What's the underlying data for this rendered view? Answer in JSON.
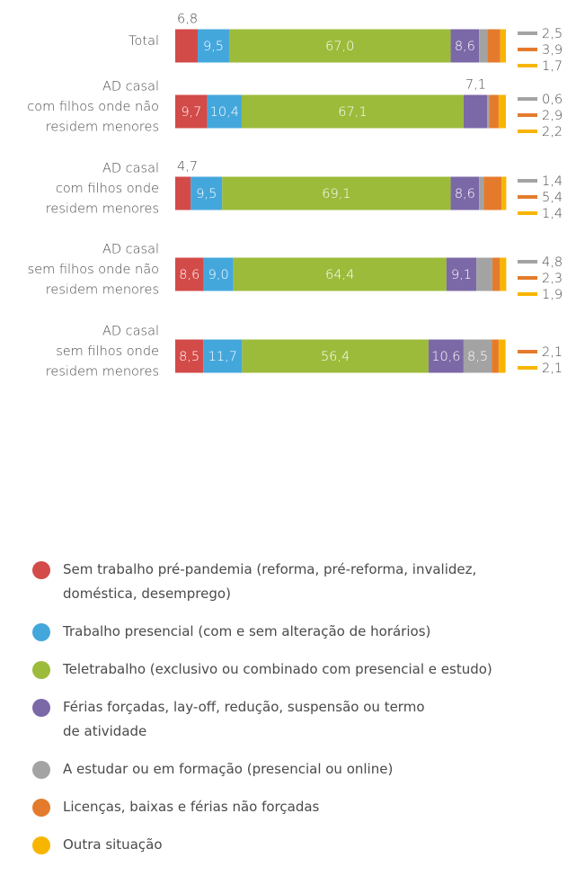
{
  "chart_data": {
    "type": "stacked_bar_horizontal",
    "categories": [
      [
        "Total"
      ],
      [
        "AD casal",
        "com filhos onde não",
        "residem menores"
      ],
      [
        "AD casal",
        "com filhos onde",
        "residem menores"
      ],
      [
        "AD casal",
        "sem filhos onde não",
        "residem menores"
      ],
      [
        "AD casal",
        "sem filhos onde",
        "residem menores"
      ]
    ],
    "xlim": [
      0,
      100
    ],
    "legend": "bottom",
    "series": [
      {
        "name": "Sem trabalho pré-pandemia (reforma, pré-reforma, invalidez, doméstica, desemprego)",
        "color": "#d24b49",
        "values": [
          6.8,
          9.7,
          4.7,
          8.6,
          8.5
        ],
        "value_labels": [
          "6,8",
          "9,7",
          "4,7",
          "8,6",
          "8,5"
        ]
      },
      {
        "name": "Trabalho presencial (com e sem alteração de horários)",
        "color": "#44a7dc",
        "values": [
          9.5,
          10.4,
          9.5,
          9.0,
          11.7
        ],
        "value_labels": [
          "9,5",
          "10,4",
          "9,5",
          "9,0",
          "11,7"
        ]
      },
      {
        "name": "Teletrabalho (exclusivo ou combinado com presencial e estudo)",
        "color": "#9cbb3b",
        "values": [
          67.0,
          67.1,
          69.1,
          64.4,
          56.4
        ],
        "value_labels": [
          "67,0",
          "67,1",
          "69,1",
          "64,4",
          "56,4"
        ]
      },
      {
        "name": "Férias forçadas, lay-off, redução, suspensão ou termo de atividade",
        "color": "#7b68a6",
        "values": [
          8.6,
          7.1,
          8.6,
          9.1,
          10.6
        ],
        "value_labels": [
          "8,6",
          "7,1",
          "8,6",
          "9,1",
          "10,6"
        ]
      },
      {
        "name": "A estudar ou em formação (presencial ou online)",
        "color": "#a3a3a3",
        "values": [
          2.5,
          0.6,
          1.4,
          4.8,
          8.5
        ],
        "value_labels": [
          "2,5",
          "0,6",
          "1,4",
          "4,8",
          "8,5"
        ]
      },
      {
        "name": "Licenças, baixas e férias não forçadas",
        "color": "#e47b2c",
        "values": [
          3.9,
          2.9,
          5.4,
          2.3,
          2.1
        ],
        "value_labels": [
          "3,9",
          "2,9",
          "5,4",
          "2,3",
          "2,1"
        ]
      },
      {
        "name": "Outra situação",
        "color": "#f8b500",
        "values": [
          1.7,
          2.2,
          1.4,
          1.9,
          2.1
        ],
        "value_labels": [
          "1,7",
          "2,2",
          "1,4",
          "1,9",
          "2,1"
        ]
      }
    ]
  }
}
